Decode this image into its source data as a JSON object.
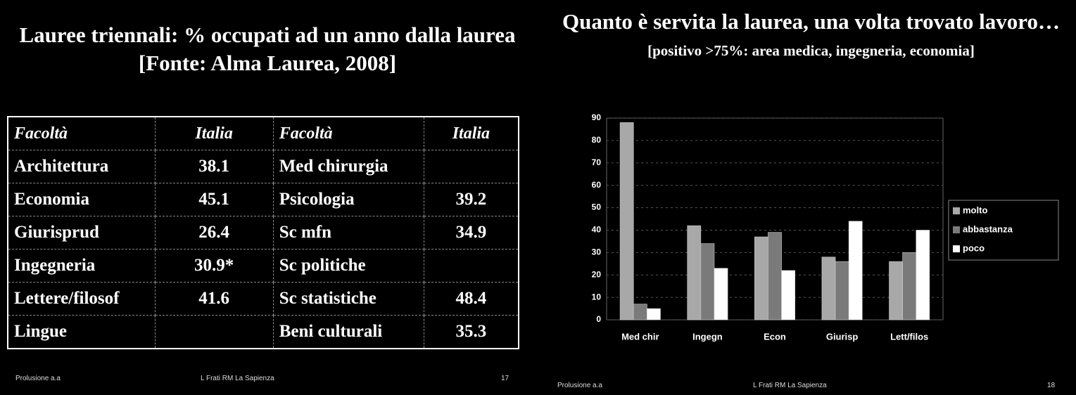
{
  "left": {
    "title": "Lauree triennali: % occupati ad un anno dalla laurea",
    "source": "[Fonte: Alma Laurea, 2008]",
    "table": {
      "header": [
        "Facoltà",
        "Italia",
        "Facoltà",
        "Italia"
      ],
      "rows": [
        [
          "Architettura",
          38.1,
          "Med chirurgia",
          null
        ],
        [
          "Economia",
          45.1,
          "Psicologia",
          39.2
        ],
        [
          "Giurisprud",
          26.4,
          "Sc mfn",
          34.9
        ],
        [
          "Ingegneria",
          "30.9*",
          "Sc politiche",
          null
        ],
        [
          "Lettere/filosof",
          41.6,
          "Sc statistiche",
          48.4
        ],
        [
          "Lingue",
          null,
          "Beni culturali",
          35.3
        ]
      ]
    },
    "footer": [
      "Prolusione a.a",
      "L Frati RM La Sapienza",
      "17"
    ]
  },
  "right": {
    "title": "Quanto è servita la laurea, una volta trovato lavoro…",
    "note": "[positivo >75%: area medica, ingegneria, economia]",
    "footer": [
      "Prolusione a.a",
      "L Frati RM La Sapienza",
      "18"
    ]
  },
  "chart_data": {
    "type": "bar",
    "categories": [
      "Med chir",
      "Ingegn",
      "Econ",
      "Giurisp",
      "Lett/filos"
    ],
    "series": [
      {
        "name": "molto",
        "color": "#a8a8a8",
        "values": [
          88,
          42,
          37,
          28,
          26
        ]
      },
      {
        "name": "abbastanza",
        "color": "#7a7a7a",
        "values": [
          7,
          34,
          39,
          26,
          30
        ]
      },
      {
        "name": "poco",
        "color": "#ffffff",
        "values": [
          5,
          23,
          22,
          44,
          40
        ]
      }
    ],
    "ylim": [
      0,
      90
    ],
    "yticks": [
      0,
      10,
      20,
      30,
      40,
      50,
      60,
      70,
      80,
      90
    ],
    "grid": true,
    "legend": "right"
  }
}
